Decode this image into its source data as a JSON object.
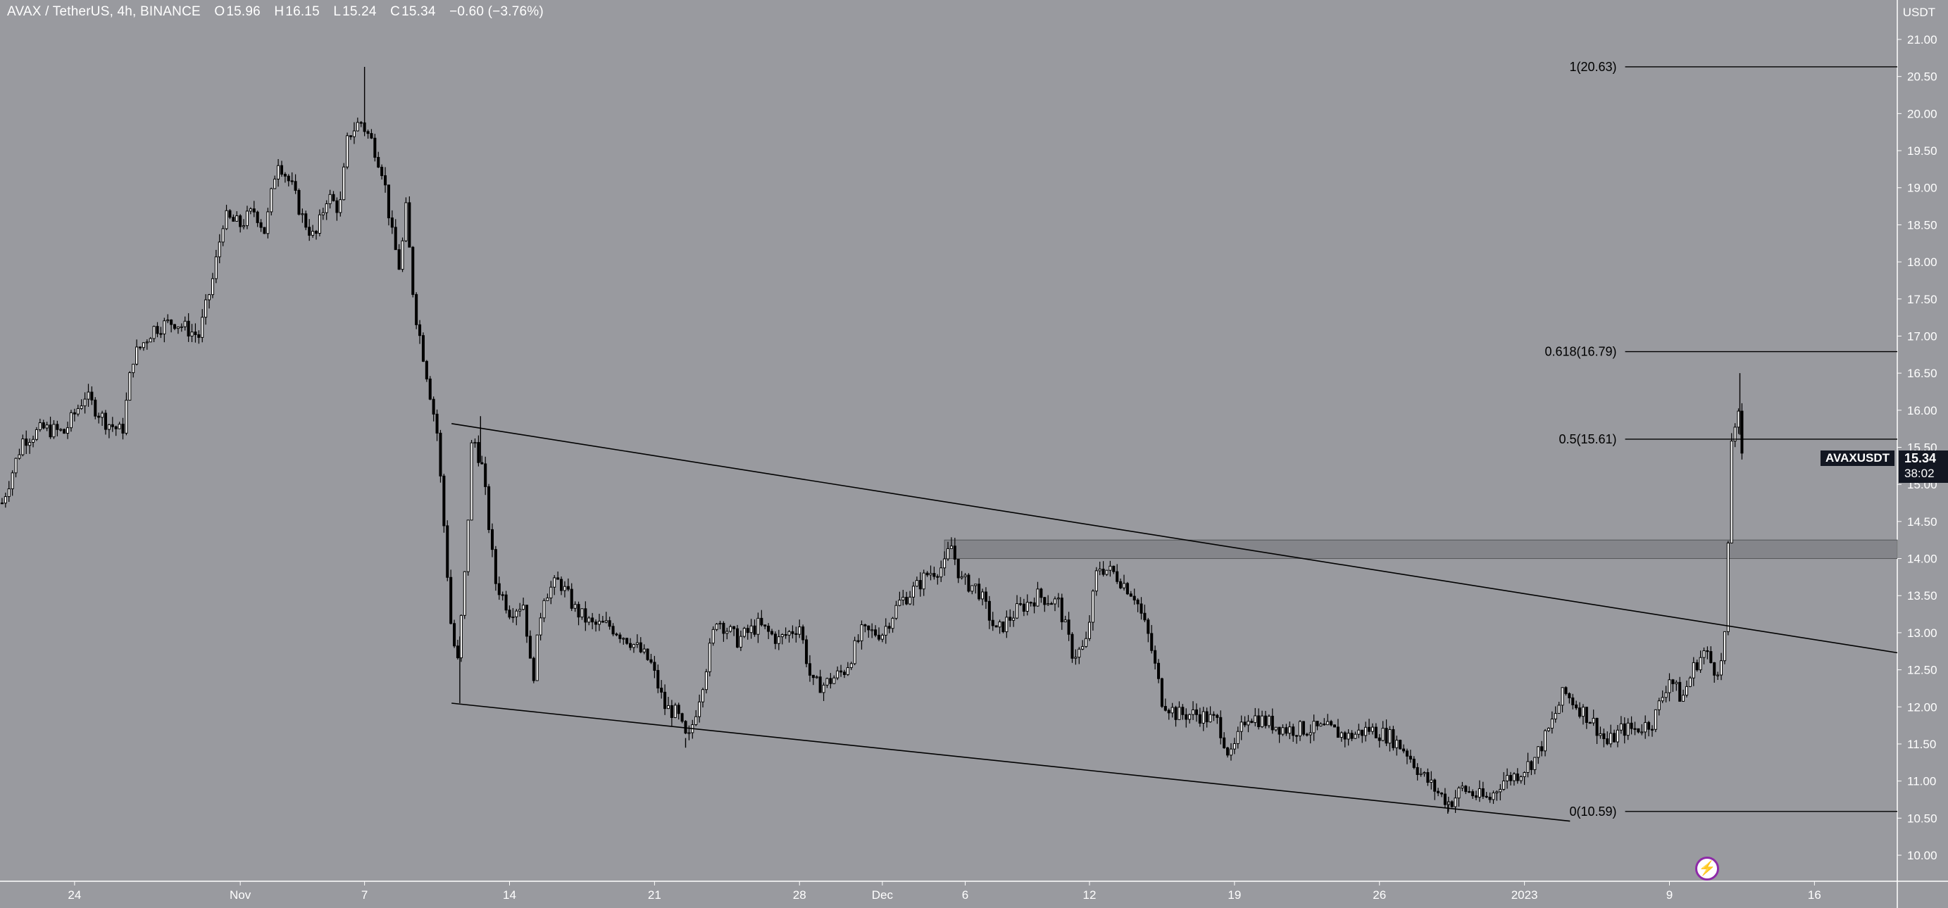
{
  "header": {
    "symbol": "AVAX / TetherUS, 4h, BINANCE",
    "open_label": "O",
    "open": "15.96",
    "high_label": "H",
    "high": "16.15",
    "low_label": "L",
    "low": "15.24",
    "close_label": "C",
    "close": "15.34",
    "change": "−0.60 (−3.76%)"
  },
  "price_axis": {
    "unit": "USDT",
    "current_price": "15.34",
    "countdown": "38:02",
    "symbol_tag": "AVAXUSDT"
  },
  "colors": {
    "background": "#999a9f",
    "candles": "#000000",
    "text": "#ffffff",
    "label_bg": "#131722",
    "zone": "#6b6c70",
    "accent": "#8e2aa8"
  },
  "icons": {
    "flash_button": "lightning-icon"
  },
  "chart_data": {
    "type": "candlestick",
    "timeframe": "4h",
    "ylim": [
      9.7,
      21.4
    ],
    "y_ticks": [
      "21.00",
      "20.50",
      "20.00",
      "19.50",
      "19.00",
      "18.50",
      "18.00",
      "17.50",
      "17.00",
      "16.50",
      "16.00",
      "15.50",
      "15.00",
      "14.50",
      "14.00",
      "13.50",
      "13.00",
      "12.50",
      "12.00",
      "11.50",
      "11.00",
      "10.50",
      "10.00"
    ],
    "x_tick_labels": [
      "24",
      "Nov",
      "7",
      "14",
      "21",
      "28",
      "Dec",
      "6",
      "12",
      "19",
      "26",
      "2023",
      "9",
      "16"
    ],
    "x_tick_days": [
      -7,
      1,
      7,
      14,
      21,
      28,
      32,
      36,
      42,
      49,
      56,
      63,
      70,
      77
    ],
    "x_range_days": [
      -10.6,
      81
    ],
    "close_path": [
      [
        -10.5,
        14.75
      ],
      [
        -9.5,
        15.6
      ],
      [
        -8.5,
        15.75
      ],
      [
        -7.5,
        15.7
      ],
      [
        -6.5,
        16.2
      ],
      [
        -5.5,
        15.85
      ],
      [
        -4.7,
        15.7
      ],
      [
        -4.2,
        16.7
      ],
      [
        -3.2,
        17.1
      ],
      [
        -2.2,
        17.2
      ],
      [
        -1.0,
        17.0
      ],
      [
        -0.3,
        17.8
      ],
      [
        0.2,
        18.6
      ],
      [
        1.0,
        18.5
      ],
      [
        1.7,
        18.7
      ],
      [
        2.2,
        18.4
      ],
      [
        2.8,
        19.4
      ],
      [
        3.5,
        19.0
      ],
      [
        4.0,
        18.6
      ],
      [
        4.6,
        18.3
      ],
      [
        5.2,
        18.9
      ],
      [
        5.8,
        18.7
      ],
      [
        6.2,
        19.7
      ],
      [
        6.8,
        19.9
      ],
      [
        7.4,
        19.6
      ],
      [
        7.9,
        19.2
      ],
      [
        8.3,
        18.4
      ],
      [
        8.7,
        17.9
      ],
      [
        9.0,
        18.7
      ],
      [
        9.4,
        17.4
      ],
      [
        10.0,
        16.5
      ],
      [
        10.5,
        15.7
      ],
      [
        10.9,
        14.2
      ],
      [
        11.2,
        13.0
      ],
      [
        11.5,
        12.6
      ],
      [
        11.9,
        14.0
      ],
      [
        12.2,
        15.7
      ],
      [
        12.7,
        15.2
      ],
      [
        13.3,
        13.7
      ],
      [
        14.0,
        13.3
      ],
      [
        14.7,
        13.4
      ],
      [
        15.1,
        12.3
      ],
      [
        15.6,
        13.5
      ],
      [
        16.4,
        13.7
      ],
      [
        17.2,
        13.3
      ],
      [
        18.0,
        13.1
      ],
      [
        18.8,
        13.1
      ],
      [
        19.8,
        12.9
      ],
      [
        20.8,
        12.6
      ],
      [
        21.5,
        12.0
      ],
      [
        22.1,
        11.9
      ],
      [
        22.6,
        11.5
      ],
      [
        23.3,
        12.3
      ],
      [
        24.0,
        13.2
      ],
      [
        25.0,
        12.9
      ],
      [
        26.0,
        13.1
      ],
      [
        27.0,
        12.9
      ],
      [
        28.0,
        13.1
      ],
      [
        28.6,
        12.3
      ],
      [
        29.2,
        12.3
      ],
      [
        30.2,
        12.5
      ],
      [
        31.0,
        13.0
      ],
      [
        32.0,
        13.0
      ],
      [
        32.8,
        13.4
      ],
      [
        33.6,
        13.6
      ],
      [
        34.2,
        13.8
      ],
      [
        35.0,
        13.9
      ],
      [
        35.3,
        14.2
      ],
      [
        35.8,
        13.7
      ],
      [
        36.6,
        13.6
      ],
      [
        37.5,
        13.0
      ],
      [
        38.5,
        13.3
      ],
      [
        39.5,
        13.5
      ],
      [
        40.5,
        13.4
      ],
      [
        41.2,
        12.7
      ],
      [
        41.8,
        12.8
      ],
      [
        42.4,
        13.9
      ],
      [
        43.2,
        13.8
      ],
      [
        44.2,
        13.5
      ],
      [
        44.9,
        12.9
      ],
      [
        45.5,
        12.1
      ],
      [
        46.2,
        11.9
      ],
      [
        47.2,
        11.9
      ],
      [
        48.2,
        11.8
      ],
      [
        48.8,
        11.3
      ],
      [
        49.6,
        11.9
      ],
      [
        50.5,
        11.8
      ],
      [
        51.5,
        11.7
      ],
      [
        52.5,
        11.7
      ],
      [
        53.5,
        11.7
      ],
      [
        54.5,
        11.6
      ],
      [
        55.5,
        11.7
      ],
      [
        56.5,
        11.6
      ],
      [
        57.3,
        11.4
      ],
      [
        58.0,
        11.1
      ],
      [
        58.8,
        10.85
      ],
      [
        59.4,
        10.7
      ],
      [
        60.0,
        10.9
      ],
      [
        60.7,
        10.8
      ],
      [
        61.3,
        10.75
      ],
      [
        61.9,
        11.0
      ],
      [
        62.7,
        11.1
      ],
      [
        63.5,
        11.3
      ],
      [
        64.2,
        11.7
      ],
      [
        64.9,
        12.2
      ],
      [
        65.6,
        12.0
      ],
      [
        66.3,
        11.8
      ],
      [
        67.0,
        11.5
      ],
      [
        67.7,
        11.7
      ],
      [
        68.4,
        11.7
      ],
      [
        69.2,
        11.8
      ],
      [
        70.0,
        12.4
      ],
      [
        70.6,
        12.1
      ],
      [
        71.2,
        12.55
      ],
      [
        71.7,
        12.75
      ],
      [
        72.2,
        12.5
      ],
      [
        72.6,
        12.6
      ],
      [
        72.8,
        13.8
      ],
      [
        73.0,
        15.6
      ],
      [
        73.3,
        16.0
      ],
      [
        73.5,
        15.34
      ]
    ],
    "spikes": [
      {
        "x": 7.0,
        "high": 20.63
      },
      {
        "x": 11.6,
        "low": 12.05
      },
      {
        "x": 12.6,
        "high": 15.92
      },
      {
        "x": 22.5,
        "low": 11.45
      },
      {
        "x": 59.3,
        "low": 10.56
      },
      {
        "x": 73.4,
        "high": 16.5
      }
    ],
    "trendlines": [
      {
        "from": [
          11.2,
          15.82
        ],
        "to": [
          81.0,
          12.73
        ]
      },
      {
        "from": [
          11.2,
          12.05
        ],
        "to": [
          65.2,
          10.46
        ]
      }
    ],
    "zone": {
      "x_start": 35.0,
      "y_low": 14.0,
      "y_high": 14.25
    },
    "fibonacci": [
      {
        "label": "1(20.63)",
        "level": 20.63
      },
      {
        "label": "0.618(16.79)",
        "level": 16.79
      },
      {
        "label": "0.5(15.61)",
        "level": 15.61
      },
      {
        "label": "0(10.59)",
        "level": 10.59
      }
    ],
    "fib_x_range_days": [
      66.5,
      81.0
    ]
  }
}
